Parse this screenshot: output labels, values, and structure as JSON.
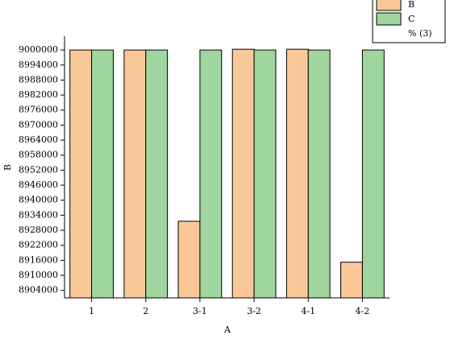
{
  "chart_data": {
    "type": "bar",
    "x_label": "A",
    "y_label": "B",
    "categories": [
      "1",
      "2",
      "3-1",
      "3-2",
      "4-1",
      "4-2"
    ],
    "series": [
      {
        "name": "B",
        "color": "#fac898",
        "values": [
          9000000,
          9000000,
          8931600,
          9000300,
          9000300,
          8915250
        ]
      },
      {
        "name": "C",
        "color": "#9fd69f",
        "values": [
          9000000,
          9000000,
          9000000,
          9000000,
          9000000,
          9000000
        ]
      }
    ],
    "legend_note": "% (3)",
    "legend_position": "top-right",
    "ylim": [
      8901000,
      9005500
    ],
    "yticks": [
      8904000,
      8910000,
      8916000,
      8922000,
      8928000,
      8934000,
      8940000,
      8946000,
      8952000,
      8958000,
      8964000,
      8970000,
      8976000,
      8982000,
      8988000,
      8994000,
      9000000
    ]
  }
}
